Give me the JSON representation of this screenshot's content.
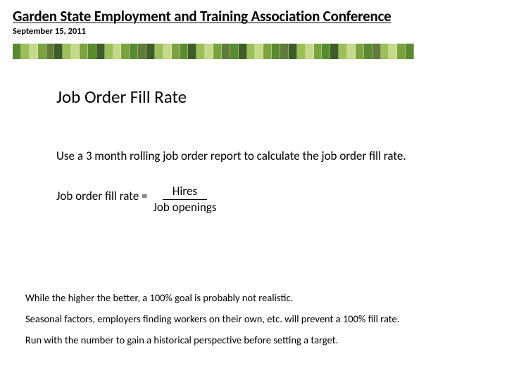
{
  "header": {
    "title": "Garden State Employment and Training Association Conference",
    "date": "September 15, 2011"
  },
  "stripe": {
    "colors": [
      "#5a8a2f",
      "#9cbf5a",
      "#c5d98b",
      "#7aa33f",
      "#617c3a",
      "#3f5d26",
      "#9cbf5a",
      "#c5d98b",
      "#7aa33f",
      "#5a8a2f",
      "#3f5d26",
      "#9cbf5a",
      "#c5d98b",
      "#7aa33f",
      "#5a8a2f",
      "#617c3a",
      "#3f5d26",
      "#9cbf5a",
      "#c5d98b",
      "#7aa33f",
      "#5a8a2f",
      "#3f5d26",
      "#9cbf5a",
      "#c5d98b",
      "#7aa33f",
      "#617c3a",
      "#5a8a2f",
      "#3f5d26",
      "#9cbf5a",
      "#c5d98b",
      "#7aa33f",
      "#5a8a2f",
      "#617c3a",
      "#3f5d26",
      "#9cbf5a",
      "#c5d98b",
      "#7aa33f",
      "#5a8a2f",
      "#3f5d26",
      "#9cbf5a",
      "#c5d98b",
      "#7aa33f",
      "#5a8a2f",
      "#617c3a",
      "#9cbf5a",
      "#c5d98b",
      "#7aa33f",
      "#5a8a2f"
    ]
  },
  "content": {
    "section_title": "Job Order Fill Rate",
    "intro": "Use a 3 month rolling job order report to calculate the job order fill rate.",
    "formula_lhs": "Job order fill rate  = ",
    "formula_num": "Hires",
    "formula_den": "Job openings",
    "notes": [
      "While the higher the better, a 100% goal is probably not realistic.",
      "Seasonal factors, employers finding workers on their own, etc. will prevent a 100% fill rate.",
      "Run with the number to gain a historical perspective before setting a target."
    ]
  }
}
